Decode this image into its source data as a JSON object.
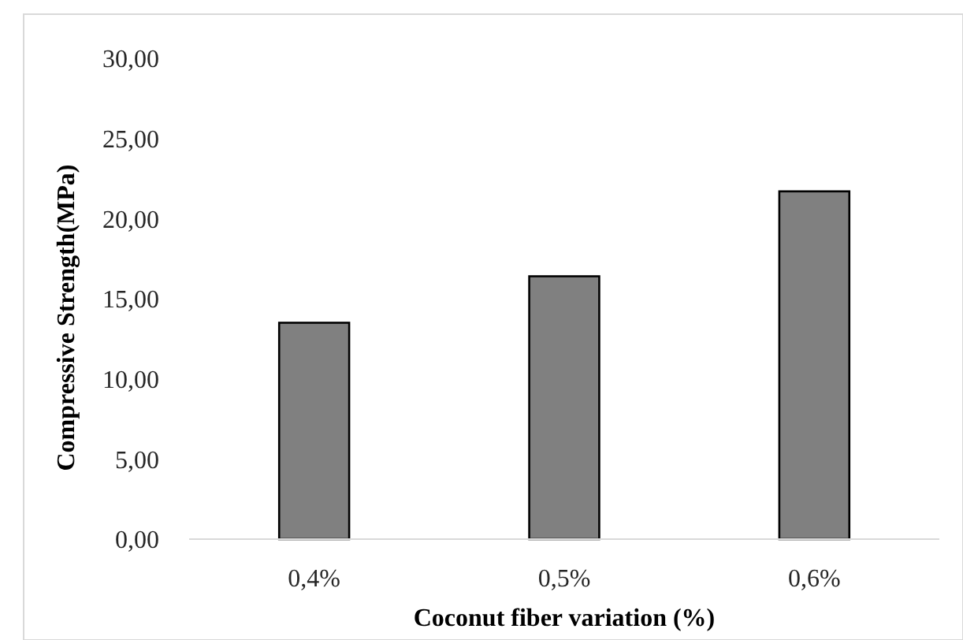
{
  "chart_data": {
    "type": "bar",
    "xlabel": "Coconut fiber variation (%)",
    "ylabel": "Compressive Strength(MPa)",
    "categories": [
      "0,4%",
      "0,5%",
      "0,6%"
    ],
    "values": [
      13.5,
      16.4,
      21.7
    ],
    "color": "#808080",
    "ylim": [
      0,
      30
    ],
    "yticks": [
      {
        "value": 0,
        "label": "0,00"
      },
      {
        "value": 5,
        "label": "5,00"
      },
      {
        "value": 10,
        "label": "10,00"
      },
      {
        "value": 15,
        "label": "15,00"
      },
      {
        "value": 20,
        "label": "20,00"
      },
      {
        "value": 25,
        "label": "25,00"
      },
      {
        "value": 30,
        "label": "30,00"
      }
    ],
    "grid": false
  }
}
